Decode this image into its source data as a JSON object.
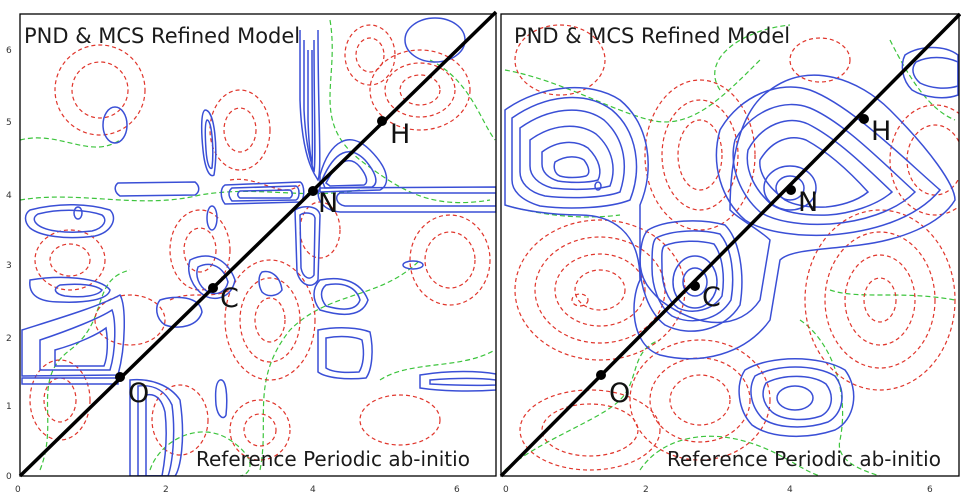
{
  "panels": [
    {
      "title": "PND & MCS Refined Model",
      "footer": "Reference Periodic ab-initio",
      "atoms": [
        {
          "label": "O",
          "x": 1.4,
          "y": 1.4
        },
        {
          "label": "C",
          "x": 2.7,
          "y": 2.7
        },
        {
          "label": "N",
          "x": 4.0,
          "y": 4.0
        },
        {
          "label": "H",
          "x": 5.0,
          "y": 5.0
        }
      ],
      "xticks": [
        "0",
        "2",
        "4",
        "6"
      ],
      "yticks": [
        "0",
        "1",
        "2",
        "3",
        "4",
        "5",
        "6"
      ]
    },
    {
      "title": "PND & MCS Refined Model",
      "footer": "Reference Periodic ab-initio",
      "atoms": [
        {
          "label": "O",
          "x": 1.4,
          "y": 1.4
        },
        {
          "label": "C",
          "x": 2.7,
          "y": 2.7
        },
        {
          "label": "N",
          "x": 4.0,
          "y": 4.0
        },
        {
          "label": "H",
          "x": 5.0,
          "y": 5.0
        }
      ],
      "xticks": [
        "0",
        "2",
        "4",
        "6"
      ]
    }
  ],
  "colors": {
    "positive_contour": "#3a4fd6",
    "negative_contour": "#e0352b",
    "zero_contour": "#3cc43c",
    "diagonal": "#000000"
  }
}
